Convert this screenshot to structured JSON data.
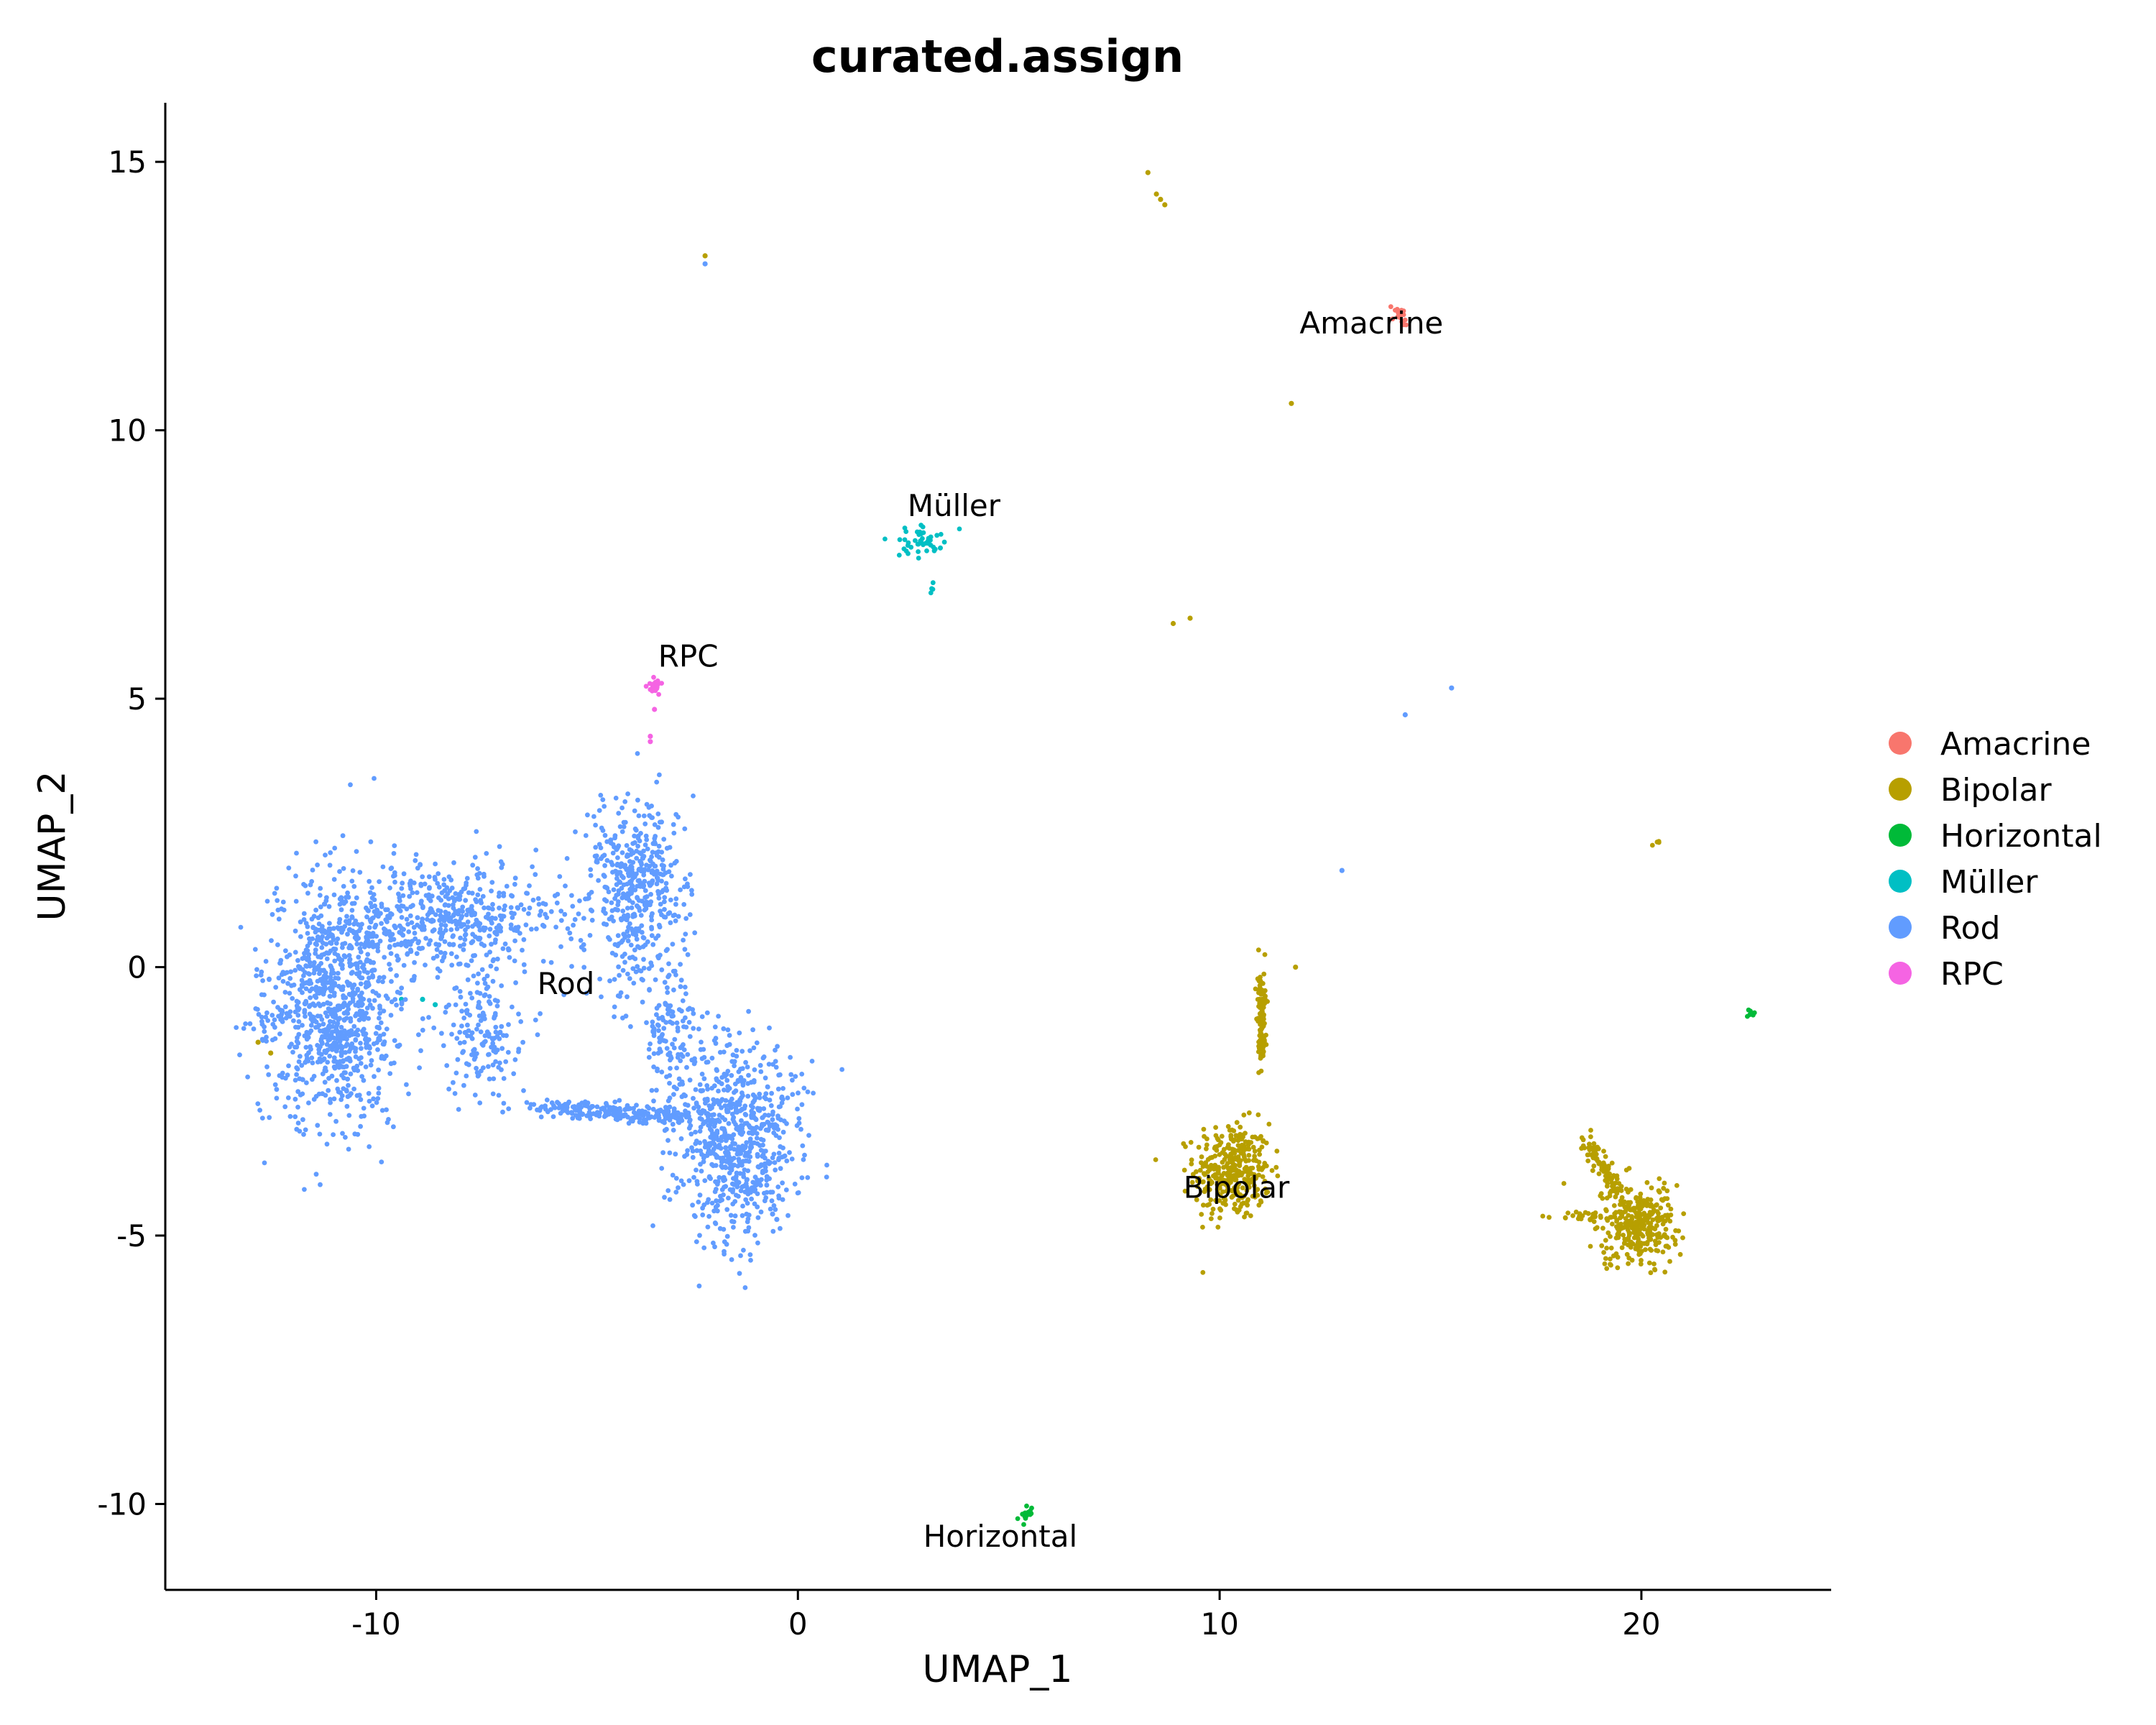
{
  "chart_data": {
    "type": "scatter",
    "title": "curated.assign",
    "xlabel": "UMAP_1",
    "ylabel": "UMAP_2",
    "xlim": [
      -15,
      24.5
    ],
    "ylim": [
      -11.6,
      16.1
    ],
    "xticks": [
      -10,
      0,
      10,
      20
    ],
    "xtick_labels": [
      "-10",
      "0",
      "10",
      "20"
    ],
    "yticks": [
      -10,
      -5,
      0,
      5,
      10,
      15
    ],
    "ytick_labels": [
      "-10",
      "-5",
      "0",
      "5",
      "10",
      "15"
    ],
    "grid": false,
    "legend_position": "right",
    "series": [
      {
        "name": "Amacrine",
        "color": "#F8766D",
        "clusters": [
          {
            "center": [
              14.2,
              12.25
            ],
            "spread": [
              0.15,
              0.2
            ],
            "n": 20,
            "line_to": [
              14.4,
              12.0
            ]
          }
        ],
        "points": []
      },
      {
        "name": "Bipolar",
        "color": "#B79F00",
        "clusters": [
          {
            "center": [
              10.3,
              -3.8
            ],
            "spread": [
              0.45,
              0.45
            ],
            "n": 350
          },
          {
            "center": [
              11.0,
              -1.5
            ],
            "spread": [
              0.15,
              1.1
            ],
            "n": 110,
            "line_to": [
              11.0,
              -0.5
            ]
          },
          {
            "center": [
              19.9,
              -4.8
            ],
            "spread": [
              0.45,
              0.35
            ],
            "n": 330
          },
          {
            "center": [
              18.7,
              -3.2
            ],
            "spread": [
              0.25,
              0.3
            ],
            "n": 90,
            "line_to": [
              19.5,
              -4.2
            ]
          },
          {
            "center": [
              18.6,
              -4.65
            ],
            "spread": [
              0.3,
              0.05
            ],
            "n": 25
          },
          {
            "center": [
              20.4,
              2.3
            ],
            "spread": [
              0.05,
              0.1
            ],
            "n": 4
          }
        ],
        "points": [
          [
            8.3,
            14.8
          ],
          [
            8.5,
            14.4
          ],
          [
            8.6,
            14.3
          ],
          [
            8.7,
            14.2
          ],
          [
            -2.2,
            13.25
          ],
          [
            11.7,
            10.5
          ],
          [
            8.9,
            6.4
          ],
          [
            9.3,
            6.5
          ],
          [
            11.8,
            0.0
          ],
          [
            -12.5,
            -1.6
          ],
          [
            -12.8,
            -1.4
          ]
        ]
      },
      {
        "name": "Horizontal",
        "color": "#00BA38",
        "clusters": [
          {
            "center": [
              5.3,
              -10.3
            ],
            "spread": [
              0.15,
              0.15
            ],
            "n": 15,
            "line_to": [
              5.5,
              -10.1
            ]
          },
          {
            "center": [
              22.6,
              -0.85
            ],
            "spread": [
              0.06,
              0.06
            ],
            "n": 6
          }
        ],
        "points": []
      },
      {
        "name": "Müller",
        "color": "#00BFC4",
        "clusters": [
          {
            "center": [
              2.9,
              7.95
            ],
            "spread": [
              0.3,
              0.15
            ],
            "n": 45
          },
          {
            "center": [
              3.2,
              7.1
            ],
            "spread": [
              0.03,
              0.08
            ],
            "n": 4
          }
        ],
        "points": [
          [
            -9.4,
            -0.6
          ],
          [
            -8.9,
            -0.6
          ],
          [
            -8.6,
            -0.7
          ]
        ]
      },
      {
        "name": "Rod",
        "color": "#619CFF",
        "clusters": [
          {
            "center": [
              -11.0,
              -0.8
            ],
            "spread": [
              0.8,
              1.1
            ],
            "n": 900
          },
          {
            "center": [
              -8.5,
              0.9
            ],
            "spread": [
              1.5,
              0.5
            ],
            "n": 550
          },
          {
            "center": [
              -3.8,
              1.4
            ],
            "spread": [
              0.55,
              0.9
            ],
            "n": 480
          },
          {
            "center": [
              -1.5,
              -3.2
            ],
            "spread": [
              0.75,
              0.9
            ],
            "n": 720
          },
          {
            "center": [
              -5.8,
              -2.6
            ],
            "spread": [
              1.6,
              0.2
            ],
            "n": 220,
            "line_to": [
              -2.8,
              -2.8
            ]
          },
          {
            "center": [
              -7.5,
              -1.2
            ],
            "spread": [
              0.5,
              0.6
            ],
            "n": 160
          },
          {
            "center": [
              -3.0,
              -1.3
            ],
            "spread": [
              0.35,
              0.6
            ],
            "n": 120
          },
          {
            "center": [
              -12.7,
              -1.0
            ],
            "spread": [
              0.2,
              0.1
            ],
            "n": 12
          }
        ],
        "points": [
          [
            -2.2,
            13.1
          ],
          [
            14.4,
            4.7
          ],
          [
            15.5,
            5.2
          ],
          [
            12.9,
            1.8
          ],
          [
            -0.6,
            -4.6
          ],
          [
            -0.5,
            -4.7
          ]
        ]
      },
      {
        "name": "RPC",
        "color": "#F564E3",
        "clusters": [
          {
            "center": [
              -3.35,
              5.25
            ],
            "spread": [
              0.08,
              0.08
            ],
            "n": 18
          }
        ],
        "points": [
          [
            -3.4,
            4.8
          ],
          [
            -3.5,
            4.3
          ],
          [
            -3.5,
            4.2
          ]
        ]
      }
    ],
    "cluster_labels": [
      {
        "text": "Amacrine",
        "x": 13.6,
        "y": 11.8
      },
      {
        "text": "Müller",
        "x": 3.7,
        "y": 8.4
      },
      {
        "text": "RPC",
        "x": -2.6,
        "y": 5.6
      },
      {
        "text": "Rod",
        "x": -5.5,
        "y": -0.5
      },
      {
        "text": "Bipolar",
        "x": 10.4,
        "y": -4.3
      },
      {
        "text": "Horizontal",
        "x": 4.8,
        "y": -10.8
      }
    ]
  }
}
